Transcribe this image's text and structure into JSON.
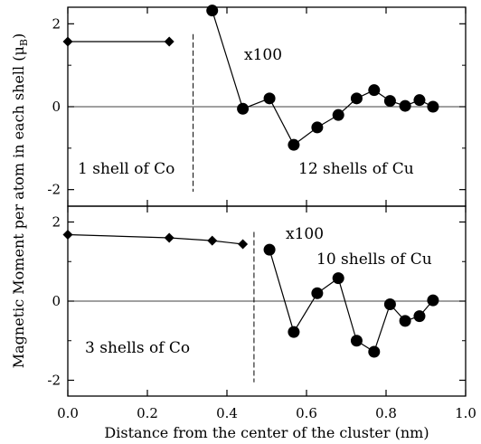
{
  "chart_data": [
    {
      "type": "line",
      "panel": "top",
      "ylim": [
        -2.4,
        2.4
      ],
      "yticks": [
        -2,
        0,
        2
      ],
      "series": [
        {
          "x": [
            0.0,
            0.255
          ],
          "y": [
            1.57,
            1.57
          ]
        },
        {
          "x": [
            0.363,
            0.44,
            0.507,
            0.568,
            0.627,
            0.68,
            0.726,
            0.77,
            0.81,
            0.848,
            0.884,
            0.918
          ],
          "y": [
            2.32,
            -0.05,
            0.2,
            -0.92,
            -0.5,
            -0.2,
            0.2,
            0.4,
            0.14,
            0.02,
            0.16,
            0.0
          ]
        }
      ],
      "divider_x": 0.315,
      "annotations": [
        "x100",
        "1 shell of Co",
        "12 shells of Cu"
      ]
    },
    {
      "type": "line",
      "panel": "bottom",
      "ylim": [
        -2.4,
        2.4
      ],
      "yticks": [
        -2,
        0,
        2
      ],
      "series": [
        {
          "x": [
            0.0,
            0.255,
            0.363,
            0.44
          ],
          "y": [
            1.68,
            1.6,
            1.53,
            1.44
          ]
        },
        {
          "x": [
            0.507,
            0.568,
            0.627,
            0.68,
            0.726,
            0.77,
            0.81,
            0.848,
            0.884,
            0.918
          ],
          "y": [
            1.3,
            -0.78,
            0.2,
            0.58,
            -1.0,
            -1.28,
            -0.08,
            -0.5,
            -0.38,
            0.02
          ]
        }
      ],
      "divider_x": 0.468,
      "annotations": [
        "x100",
        "10 shells of Cu",
        "3 shells of Co"
      ]
    }
  ],
  "axes": {
    "xlabel": "Distance from the center of the cluster (nm)",
    "ylabel": "Magnetic Moment per atom in each shell (μ",
    "ylabel_sub": "B",
    "ylabel_close": ")",
    "xlim": [
      0.0,
      1.0
    ],
    "xticks": [
      "0.0",
      "0.2",
      "0.4",
      "0.6",
      "0.8",
      "1.0"
    ]
  },
  "labels": {
    "top_multiplier": "x100",
    "top_left": "1 shell of Co",
    "top_right": "12 shells of Cu",
    "bottom_multiplier": "x100",
    "bottom_right": "10 shells of Cu",
    "bottom_left": "3 shells of Co"
  }
}
